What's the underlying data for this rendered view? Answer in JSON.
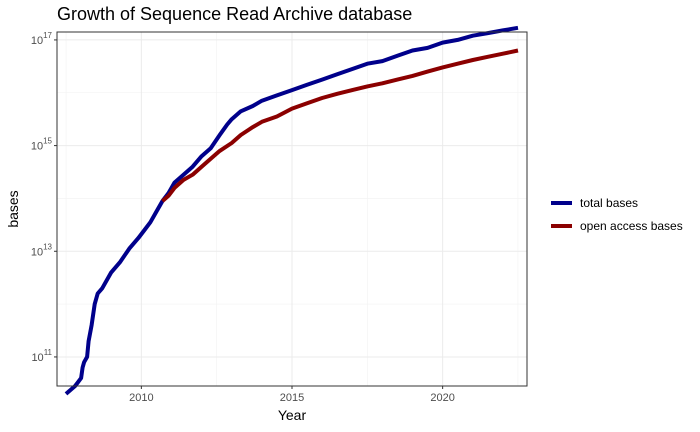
{
  "chart_data": {
    "type": "line",
    "title": "Growth of Sequence Read Archive database",
    "xlabel": "Year",
    "ylabel": "bases",
    "xlim": [
      2007.2,
      2022.8
    ],
    "ylim_log10": [
      10.45,
      17.15
    ],
    "y_scale": "log10",
    "grid": true,
    "legend_position": "right",
    "x_ticks": [
      {
        "value": 2010,
        "label": "2010"
      },
      {
        "value": 2015,
        "label": "2015"
      },
      {
        "value": 2020,
        "label": "2020"
      }
    ],
    "y_ticks": [
      {
        "exponent": 11,
        "base": "10",
        "sup": "11"
      },
      {
        "exponent": 13,
        "base": "10",
        "sup": "13"
      },
      {
        "exponent": 15,
        "base": "10",
        "sup": "15"
      },
      {
        "exponent": 17,
        "base": "10",
        "sup": "17"
      }
    ],
    "series": [
      {
        "name": "total bases",
        "color": "#00008B",
        "x": [
          2007.5,
          2007.8,
          2008.0,
          2008.05,
          2008.1,
          2008.2,
          2008.25,
          2008.35,
          2008.45,
          2008.55,
          2008.7,
          2009.0,
          2009.3,
          2009.6,
          2009.9,
          2010.1,
          2010.3,
          2010.5,
          2010.7,
          2010.9,
          2011.1,
          2011.4,
          2011.7,
          2012.0,
          2012.3,
          2012.6,
          2012.85,
          2013.0,
          2013.3,
          2013.7,
          2014.0,
          2014.5,
          2015.0,
          2015.5,
          2016.0,
          2016.5,
          2017.0,
          2017.5,
          2018.0,
          2018.5,
          2019.0,
          2019.5,
          2020.0,
          2020.5,
          2021.0,
          2021.5,
          2022.0,
          2022.5
        ],
        "y_log10": [
          10.3,
          10.45,
          10.6,
          10.8,
          10.9,
          11.0,
          11.3,
          11.6,
          12.0,
          12.2,
          12.3,
          12.6,
          12.8,
          13.05,
          13.25,
          13.4,
          13.55,
          13.75,
          13.95,
          14.1,
          14.3,
          14.45,
          14.6,
          14.8,
          14.95,
          15.2,
          15.4,
          15.5,
          15.65,
          15.75,
          15.85,
          15.95,
          16.05,
          16.15,
          16.25,
          16.35,
          16.45,
          16.55,
          16.6,
          16.7,
          16.8,
          16.85,
          16.95,
          17.0,
          17.08,
          17.13,
          17.18,
          17.23
        ]
      },
      {
        "name": "open access bases",
        "color": "#8B0000",
        "x": [
          2010.7,
          2010.9,
          2011.1,
          2011.4,
          2011.7,
          2012.0,
          2012.3,
          2012.6,
          2013.0,
          2013.3,
          2013.7,
          2014.0,
          2014.5,
          2015.0,
          2015.5,
          2016.0,
          2016.5,
          2017.0,
          2017.5,
          2018.0,
          2018.5,
          2019.0,
          2019.5,
          2020.0,
          2020.5,
          2021.0,
          2021.5,
          2022.0,
          2022.5
        ],
        "y_log10": [
          13.95,
          14.05,
          14.2,
          14.35,
          14.45,
          14.6,
          14.75,
          14.9,
          15.05,
          15.2,
          15.35,
          15.45,
          15.55,
          15.7,
          15.8,
          15.9,
          15.98,
          16.05,
          16.12,
          16.18,
          16.25,
          16.32,
          16.4,
          16.48,
          16.55,
          16.62,
          16.68,
          16.74,
          16.8
        ]
      }
    ]
  }
}
